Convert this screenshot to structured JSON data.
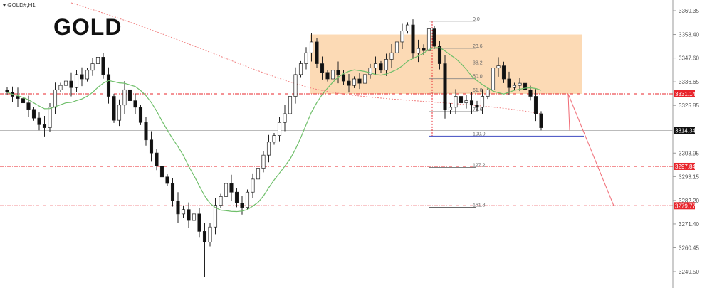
{
  "header": {
    "symbol": "GOLD#,H1",
    "title": "GOLD"
  },
  "chart_data": {
    "type": "candlestick",
    "ylim": [
      3249.5,
      3369.35
    ],
    "y_ticks": [
      "3369.35",
      "3358.40",
      "3347.60",
      "3336.65",
      "3325.85",
      "3303.95",
      "3293.15",
      "3282.20",
      "3271.40",
      "3260.45",
      "3249.50"
    ],
    "closes": [
      3331.9,
      3330,
      3329,
      3327,
      3324,
      3320,
      3317,
      3315.6,
      3325,
      3333,
      3335,
      3337,
      3334,
      3340,
      3338,
      3342,
      3345,
      3348,
      3340,
      3330,
      3319,
      3326,
      3333,
      3328,
      3325,
      3318,
      3310,
      3304,
      3298,
      3293,
      3290,
      3282,
      3276,
      3278,
      3273,
      3276,
      3268,
      3263,
      3270,
      3280,
      3284,
      3290,
      3286,
      3281,
      3279,
      3286,
      3292,
      3297,
      3303,
      3309,
      3312,
      3318,
      3322,
      3330,
      3340,
      3345,
      3350,
      3355,
      3345,
      3341,
      3338,
      3342,
      3340,
      3337,
      3335,
      3338,
      3336,
      3340,
      3343,
      3345,
      3342,
      3347,
      3350,
      3355,
      3360,
      3362.8,
      3349.8,
      3352,
      3351,
      3361,
      3353,
      3345,
      3323.8,
      3325,
      3330,
      3327,
      3328,
      3326,
      3325,
      3330,
      3333,
      3343,
      3344,
      3338,
      3334,
      3335,
      3336,
      3333,
      3330,
      3322,
      3315.6
    ],
    "levels": [
      {
        "price": 3331.14,
        "label": "3331.14",
        "color": "#e8242b",
        "style": "dashed"
      },
      {
        "price": 3297.84,
        "label": "3297.84",
        "color": "#e8242b",
        "style": "dashed"
      },
      {
        "price": 3279.77,
        "label": "3279.77",
        "color": "#e8242b",
        "style": "dashed"
      },
      {
        "price": 3314.34,
        "label": "3314.34",
        "color": "#111111",
        "style": "solid"
      }
    ],
    "zone": {
      "top": 3358.4,
      "bottom": 3331.14,
      "color": "#fbd3a8"
    },
    "fibonacci": {
      "p0": 3364.5,
      "p100": 3311.7,
      "levels": [
        "0.0",
        "23.6",
        "38.2",
        "50.0",
        "61.8",
        "78.6",
        "100.0",
        "127.2",
        "161.8"
      ]
    },
    "projection": [
      3314.34,
      3331.14,
      3279.77
    ],
    "ma_color": "#6fbf6a",
    "slow_ma_color": "#f08080"
  }
}
